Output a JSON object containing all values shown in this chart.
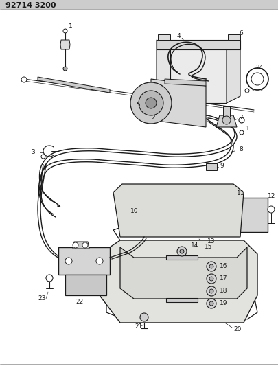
{
  "title": "92714 3200",
  "bg_color": "#ffffff",
  "line_color": "#1a1a1a",
  "label_fontsize": 6.5,
  "figsize": [
    4.06,
    5.33
  ],
  "dpi": 100
}
